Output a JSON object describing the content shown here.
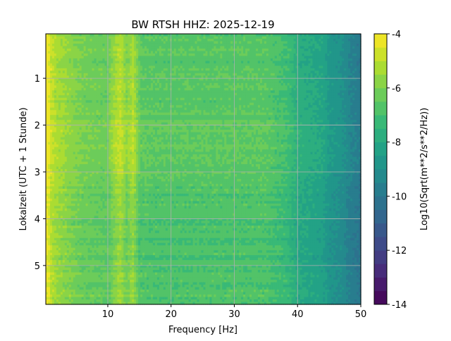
{
  "chart_data": {
    "type": "heatmap",
    "title": "BW RTSH  HHZ: 2025-12-19",
    "xlabel": "Frequency [Hz]",
    "ylabel": "Lokalzeit (UTC + 1 Stunde)",
    "xlim": [
      0.2,
      50
    ],
    "ylim": [
      5.83,
      0.05
    ],
    "xticks": [
      "10",
      "20",
      "30",
      "40",
      "50"
    ],
    "xtick_values": [
      10,
      20,
      30,
      40,
      50
    ],
    "yticks": [
      "1",
      "2",
      "3",
      "4",
      "5"
    ],
    "ytick_values": [
      1,
      2,
      3,
      4,
      5
    ],
    "grid": true,
    "colorbar": {
      "label": "Log10(Sqrt(m**2/s**2/Hz))",
      "range": [
        -14,
        -4
      ],
      "ticks": [
        "-4",
        "-6",
        "-8",
        "-10",
        "-12",
        "-14"
      ],
      "tick_values": [
        -4,
        -6,
        -8,
        -10,
        -12,
        -14
      ],
      "levels": 20,
      "colormap": "viridis"
    },
    "frequency_profile": {
      "frequency_hz": [
        0.5,
        1,
        2,
        3,
        4,
        5,
        6,
        8,
        10,
        11.5,
        12,
        13,
        14,
        15,
        17,
        20,
        25,
        30,
        35,
        37,
        38.5,
        40,
        42,
        44,
        45,
        47,
        48.5,
        50
      ],
      "log10_amplitude": [
        -4.3,
        -5.0,
        -5.5,
        -5.7,
        -5.9,
        -6.1,
        -6.3,
        -6.4,
        -6.5,
        -5.6,
        -5.4,
        -6.2,
        -5.5,
        -6.7,
        -6.8,
        -6.8,
        -6.8,
        -6.8,
        -6.8,
        -7.1,
        -7.3,
        -7.9,
        -8.1,
        -8.3,
        -8.8,
        -9.1,
        -9.7,
        -10.0
      ]
    },
    "hourly_offset": {
      "hour": [
        0,
        1,
        2,
        3,
        4,
        5
      ],
      "log10_offset": [
        0.1,
        0.2,
        0.3,
        0.0,
        -0.1,
        0.0
      ]
    }
  }
}
